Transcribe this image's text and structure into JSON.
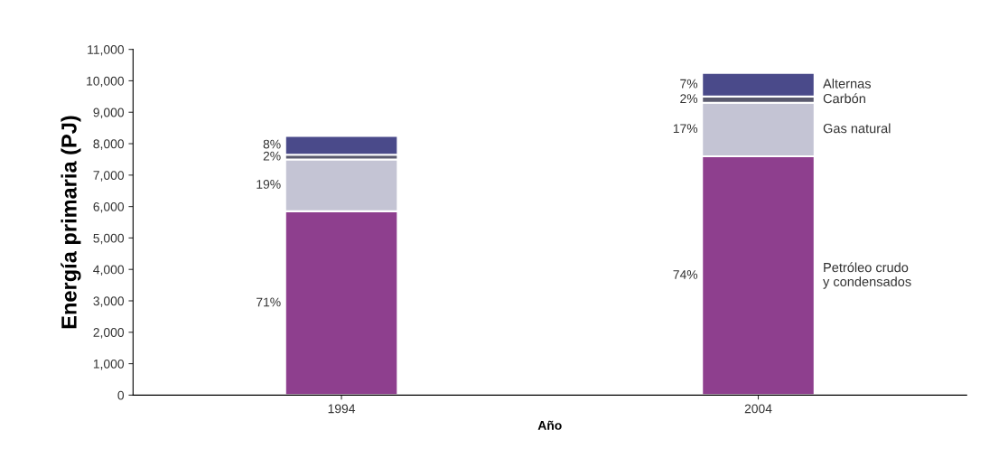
{
  "chart_data": {
    "type": "bar",
    "stacked": true,
    "xlabel": "Año",
    "ylabel": "Energía primaria (PJ)",
    "categories": [
      "1994",
      "2004"
    ],
    "series": [
      {
        "name": "Petróleo crudo\ny condensados",
        "color": "#8e3f8e",
        "values": [
          5850,
          7600
        ]
      },
      {
        "name": "Gas natural",
        "color": "#c4c4d4",
        "values": [
          1650,
          1700
        ]
      },
      {
        "name": "Carbón",
        "color": "#5a5a6e",
        "values": [
          150,
          200
        ]
      },
      {
        "name": "Alternas",
        "color": "#4a4a8a",
        "values": [
          600,
          750
        ]
      }
    ],
    "annotations": [
      "71%",
      "19%",
      "2%",
      "8%",
      "74%",
      "17%",
      "2%",
      "7%"
    ],
    "ylim": [
      0,
      11000
    ],
    "yticks": [
      0,
      {
        "value": 1000,
        "label": "1,000"
      },
      {
        "value": 2000,
        "label": "2,000"
      },
      {
        "value": 3000,
        "label": "3,000"
      },
      {
        "value": 4000,
        "label": "4,000"
      },
      {
        "value": 5000,
        "label": "5,000"
      },
      {
        "value": 6000,
        "label": "6,000"
      },
      {
        "value": 7000,
        "label": "7,000"
      },
      {
        "value": 8000,
        "label": "8,000"
      },
      {
        "value": 9000,
        "label": "9,000"
      },
      {
        "value": 10000,
        "label": "10,000"
      },
      {
        "value": 11000,
        "label": "11,000"
      }
    ],
    "grid": false,
    "legend": false
  }
}
